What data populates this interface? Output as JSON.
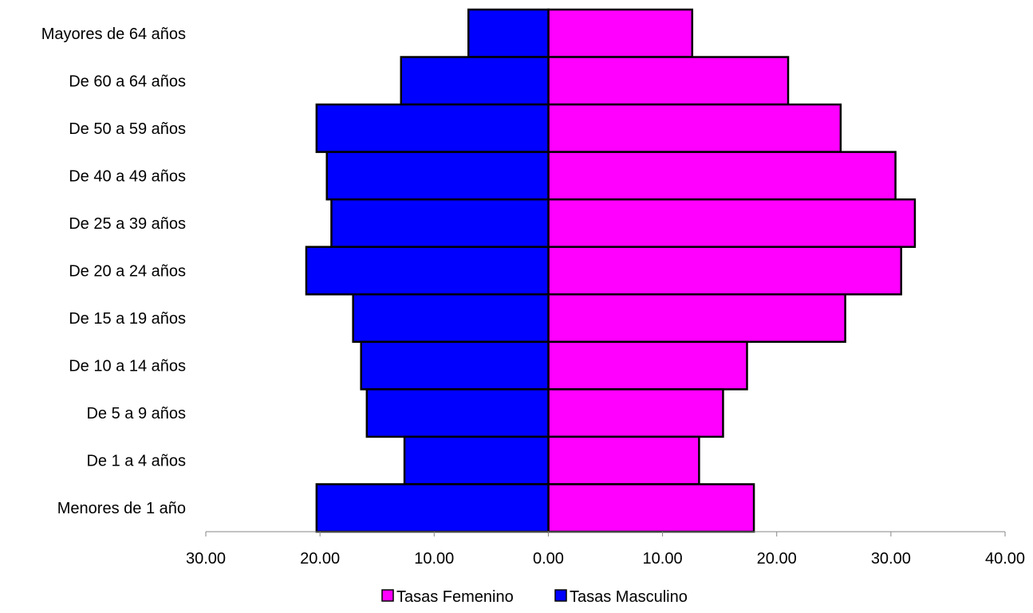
{
  "chart_data": {
    "type": "bar",
    "orientation": "horizontal",
    "layout": "population-pyramid",
    "categories": [
      "Mayores de 64 años",
      "De 60 a 64 años",
      "De 50 a 59 años",
      "De 40 a 49 años",
      "De 25 a 39 años",
      "De 20 a 24 años",
      "De 15 a 19 años",
      "De 10 a 14 años",
      "De 5 a 9 años",
      "De 1 a 4 años",
      "Menores de 1 año"
    ],
    "series": [
      {
        "name": "Tasas Femenino",
        "side": "right",
        "color": "#ff00ff",
        "values": [
          12.6,
          21.0,
          25.6,
          30.4,
          32.1,
          30.9,
          26.0,
          17.4,
          15.3,
          13.2,
          18.0
        ]
      },
      {
        "name": "Tasas Masculino",
        "side": "left",
        "color": "#0000ff",
        "values": [
          7.0,
          12.9,
          20.3,
          19.4,
          19.0,
          21.2,
          17.1,
          16.4,
          15.9,
          12.6,
          20.3
        ]
      }
    ],
    "xlim": [
      -30,
      40
    ],
    "xticks": [
      -30,
      -20,
      -10,
      0,
      10,
      20,
      30,
      40
    ],
    "xtick_labels": [
      "30.00",
      "20.00",
      "10.00",
      "0.00",
      "10.00",
      "20.00",
      "30.00",
      "40.00"
    ],
    "grid": false,
    "legend_position": "bottom"
  }
}
